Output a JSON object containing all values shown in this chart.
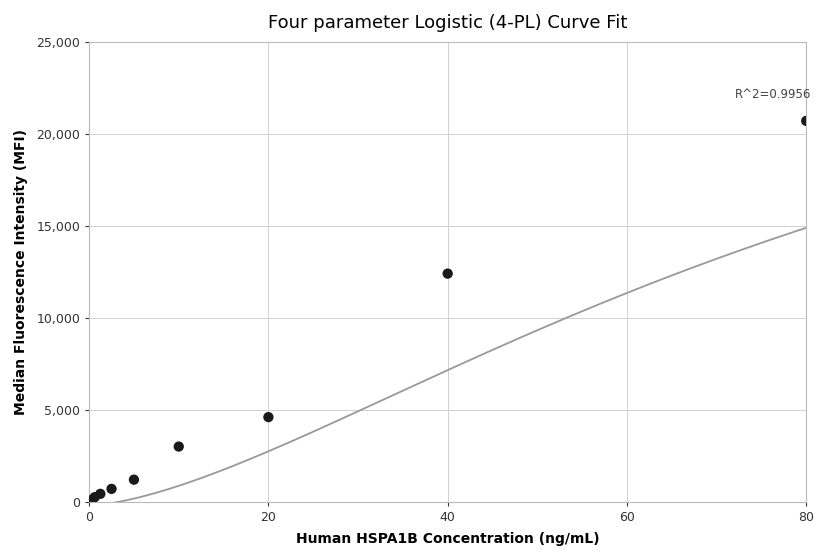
{
  "title": "Four parameter Logistic (4-PL) Curve Fit",
  "xlabel": "Human HSPA1B Concentration (ng/mL)",
  "ylabel": "Median Fluorescence Intensity (MFI)",
  "scatter_x": [
    0.312,
    0.625,
    1.25,
    2.5,
    5.0,
    10.0,
    20.0,
    40.0,
    80.0
  ],
  "scatter_y": [
    100,
    250,
    430,
    700,
    1200,
    3000,
    4600,
    12400,
    20700
  ],
  "xlim": [
    0,
    80
  ],
  "ylim": [
    0,
    25000
  ],
  "yticks": [
    0,
    5000,
    10000,
    15000,
    20000,
    25000
  ],
  "xticks": [
    0,
    20,
    40,
    60,
    80
  ],
  "r2_text": "R^2=0.9956",
  "r2_x": 72,
  "r2_y": 21800,
  "curve_color": "#999999",
  "scatter_color": "#1a1a1a",
  "background_color": "#ffffff",
  "grid_color": "#d0d0d0",
  "4pl_A": -200,
  "4pl_B": 1.55,
  "4pl_C": 90,
  "4pl_D": 33000,
  "title_fontsize": 13,
  "label_fontsize": 10,
  "tick_fontsize": 9
}
